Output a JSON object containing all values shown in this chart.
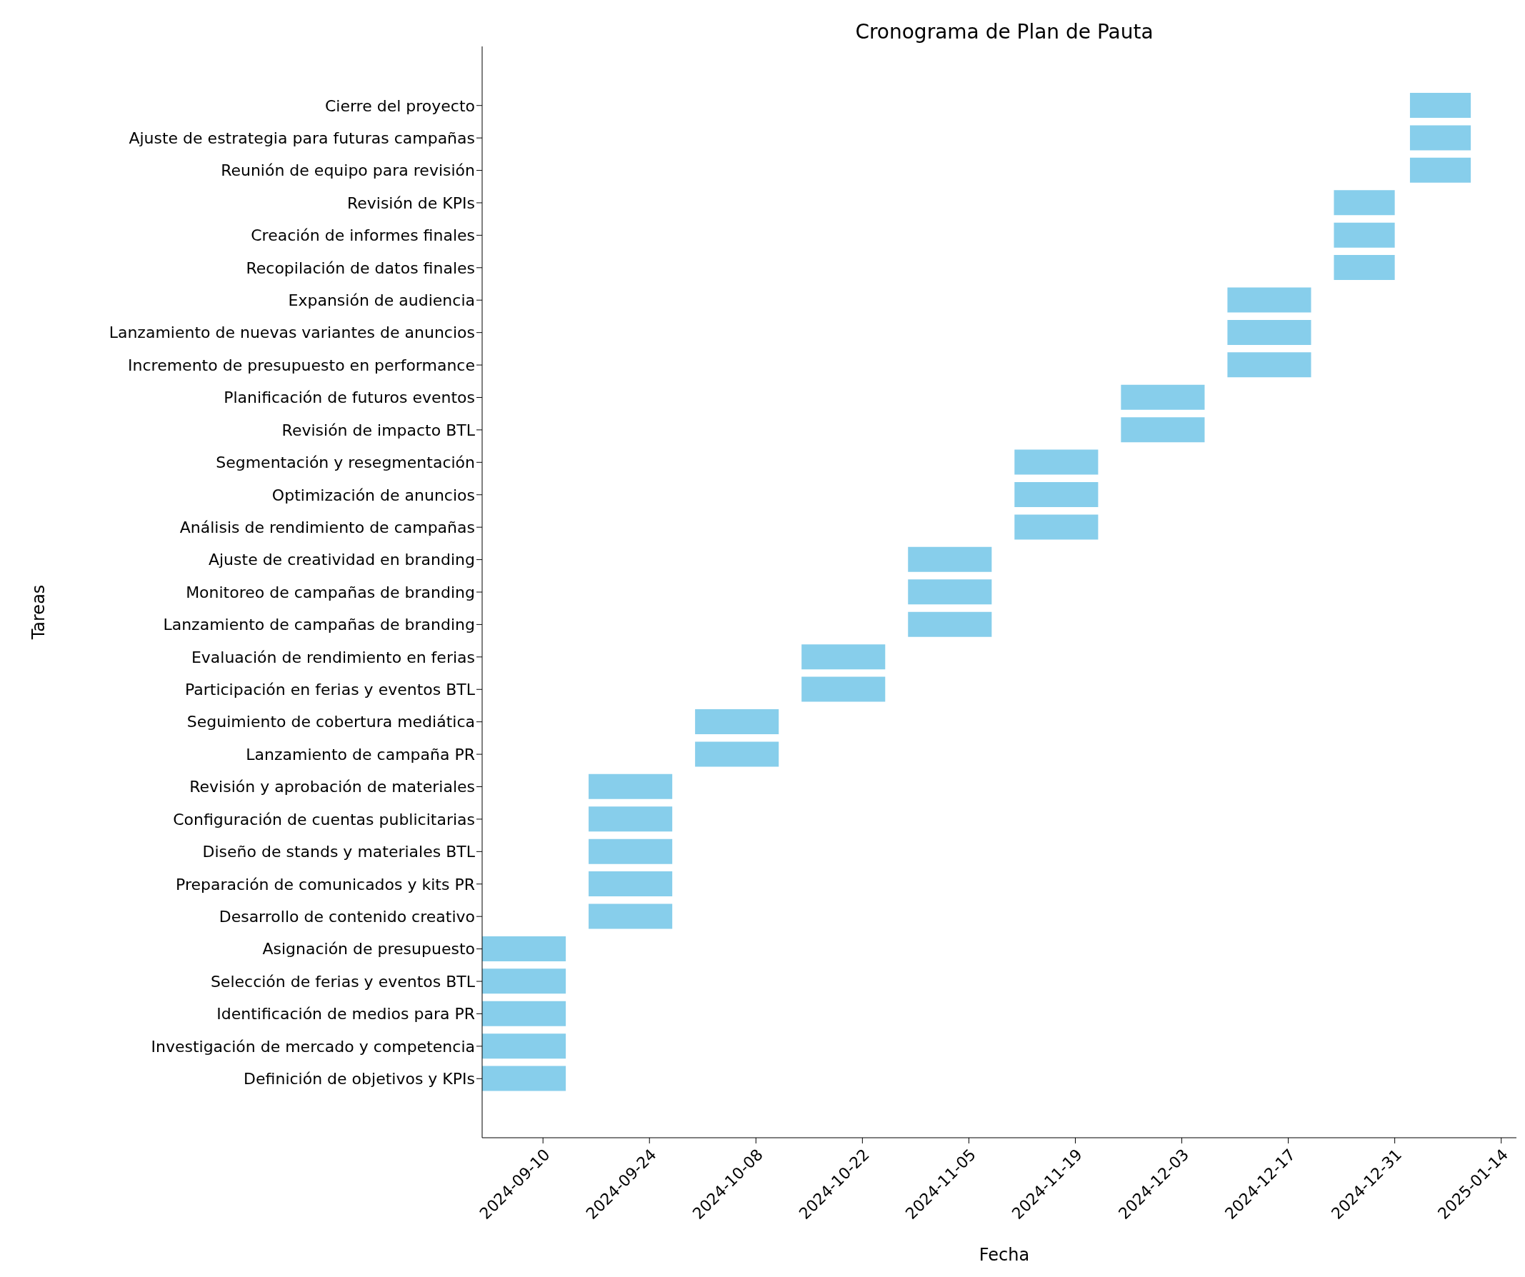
{
  "chart_data": {
    "type": "bar",
    "orientation": "horizontal",
    "title": "Cronograma de Plan de Pauta",
    "xlabel": "Fecha",
    "ylabel": "Tareas",
    "categories": [
      "Cierre del proyecto",
      "Ajuste de estrategia para futuras campañas",
      "Reunión de equipo para revisión",
      "Revisión de KPIs",
      "Creación de informes finales",
      "Recopilación de datos finales",
      "Expansión de audiencia",
      "Lanzamiento de nuevas variantes de anuncios",
      "Incremento de presupuesto en performance",
      "Planificación de futuros eventos",
      "Revisión de impacto BTL",
      "Segmentación y resegmentación",
      "Optimización de anuncios",
      "Análisis de rendimiento de campañas",
      "Ajuste de creatividad en branding",
      "Monitoreo de campañas de branding",
      "Lanzamiento de campañas de branding",
      "Evaluación de rendimiento en ferias",
      "Participación en ferias y eventos BTL",
      "Seguimiento de cobertura mediática",
      "Lanzamiento de campaña PR",
      "Revisión y aprobación de materiales",
      "Configuración de cuentas publicitarias",
      "Diseño de stands y materiales BTL",
      "Preparación de comunicados y kits PR",
      "Desarrollo de contenido creativo",
      "Asignación de presupuesto",
      "Selección de ferias y eventos BTL",
      "Identificación de medios para PR",
      "Investigación de mercado y competencia",
      "Definición de objetivos y KPIs"
    ],
    "base": [
      20090,
      20090,
      20090,
      20080,
      20080,
      20080,
      20066,
      20066,
      20066,
      20052,
      20052,
      20038,
      20038,
      20038,
      20024,
      20024,
      20024,
      20010,
      20010,
      19996,
      19996,
      19982,
      19982,
      19982,
      19982,
      19982,
      19968,
      19968,
      19968,
      19968,
      19968
    ],
    "values": [
      8,
      8,
      8,
      8,
      8,
      8,
      11,
      11,
      11,
      11,
      11,
      11,
      11,
      11,
      11,
      11,
      11,
      11,
      11,
      11,
      11,
      11,
      11,
      11,
      11,
      11,
      11,
      11,
      11,
      11,
      11
    ],
    "color": "#87ceeb",
    "xlim": [
      "2024-09-02",
      "2025-01-16"
    ],
    "xticks": [
      "2024-09-10",
      "2024-09-24",
      "2024-10-08",
      "2024-10-22",
      "2024-11-05",
      "2024-11-19",
      "2024-12-03",
      "2024-12-17",
      "2024-12-31",
      "2025-01-14"
    ],
    "grid": false,
    "legend": false
  }
}
